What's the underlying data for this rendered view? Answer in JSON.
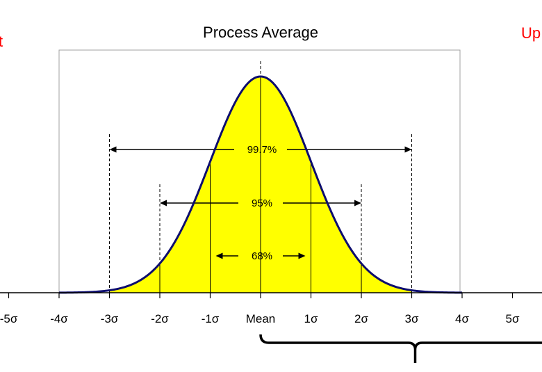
{
  "title": "Process Average",
  "left_label": "t",
  "right_label": "Up",
  "colors": {
    "fill": "#ffff00",
    "curve": "#0d0d6e",
    "limit_text": "#ff0000",
    "axis": "#000000",
    "frame": "#a0a0a0"
  },
  "chart_data": {
    "type": "area",
    "distribution": "normal",
    "x_ticks": [
      {
        "value": -5,
        "label": "-5σ"
      },
      {
        "value": -4,
        "label": "-4σ"
      },
      {
        "value": -3,
        "label": "-3σ"
      },
      {
        "value": -2,
        "label": "-2σ"
      },
      {
        "value": -1,
        "label": "-1σ"
      },
      {
        "value": 0,
        "label": "Mean"
      },
      {
        "value": 1,
        "label": "1σ"
      },
      {
        "value": 2,
        "label": "2σ"
      },
      {
        "value": 3,
        "label": "3σ"
      },
      {
        "value": 4,
        "label": "4σ"
      },
      {
        "value": 5,
        "label": "5σ"
      }
    ],
    "xlim": [
      -4,
      4
    ],
    "fill_range": [
      -3,
      3
    ],
    "intervals": [
      {
        "label": "99.7%",
        "from": -3,
        "to": 3
      },
      {
        "label": "95%",
        "from": -2,
        "to": 2
      },
      {
        "label": "68%",
        "from": -1,
        "to": 1
      }
    ],
    "bracket_range": [
      0,
      6
    ]
  }
}
